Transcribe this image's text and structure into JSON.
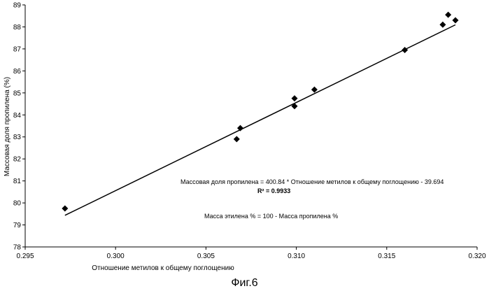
{
  "chart_data": {
    "type": "scatter",
    "xlabel": "Отношение метилов к общему поглощению",
    "ylabel": "Массовая доля пропилена (%)",
    "xlim": [
      0.295,
      0.32
    ],
    "ylim": [
      78,
      89
    ],
    "x_ticks": [
      "0.295",
      "0.300",
      "0.305",
      "0.310",
      "0.315",
      "0.320"
    ],
    "y_ticks": [
      "78",
      "79",
      "80",
      "81",
      "82",
      "83",
      "84",
      "85",
      "86",
      "87",
      "88",
      "89"
    ],
    "grid": false,
    "legend": "none",
    "marker_color": "#000000",
    "points": [
      {
        "x": 0.2972,
        "y": 79.75
      },
      {
        "x": 0.3067,
        "y": 82.9
      },
      {
        "x": 0.3069,
        "y": 83.4
      },
      {
        "x": 0.3099,
        "y": 84.75
      },
      {
        "x": 0.3099,
        "y": 84.4
      },
      {
        "x": 0.311,
        "y": 85.15
      },
      {
        "x": 0.316,
        "y": 86.95
      },
      {
        "x": 0.3181,
        "y": 88.1
      },
      {
        "x": 0.3184,
        "y": 88.55
      },
      {
        "x": 0.3188,
        "y": 88.3
      }
    ],
    "trendline": {
      "slope": 400.84,
      "intercept": -39.694,
      "x_range": [
        0.2972,
        0.3188
      ]
    },
    "annotations": {
      "equation": "Массовая доля пропилена = 400.84 * Отношение метилов к общему поглощению - 39.694",
      "r2": "R² = 0.9933",
      "ethylene": "Масса этилена % = 100 - Масса пропилена %"
    }
  },
  "caption": "Фиг.6"
}
